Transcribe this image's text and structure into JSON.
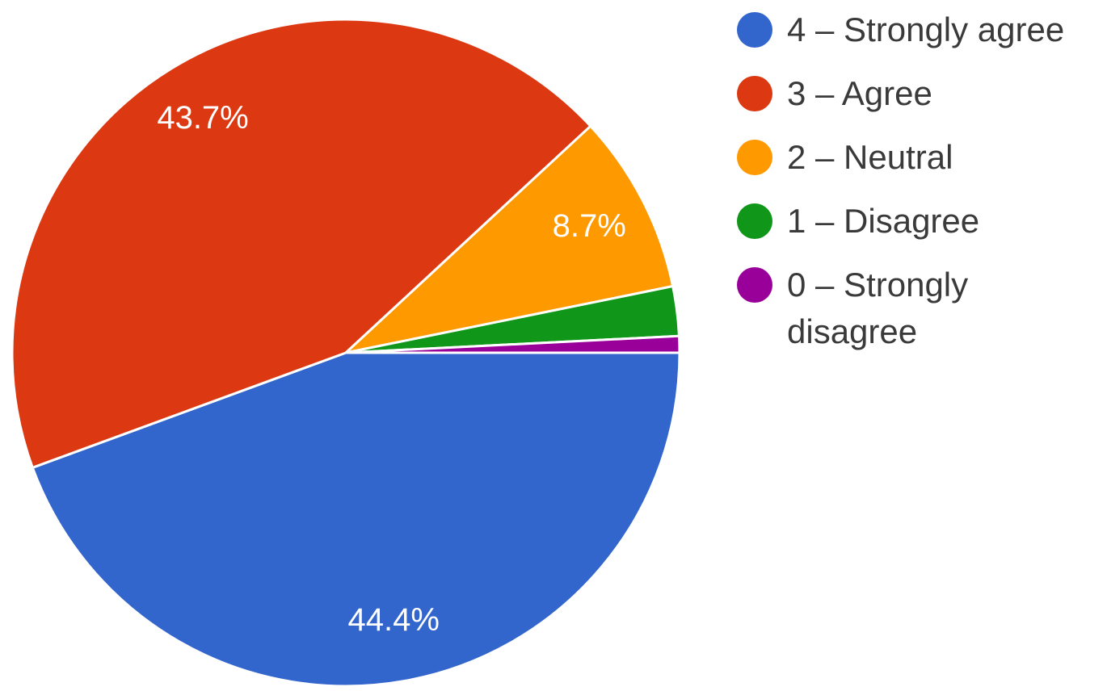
{
  "chart_data": {
    "type": "pie",
    "title": "",
    "legend_position": "right",
    "series": [
      {
        "label": "4 – Strongly agree",
        "value": 44.4,
        "value_label": "44.4%",
        "color": "#3366cc"
      },
      {
        "label": "3 – Agree",
        "value": 43.7,
        "value_label": "43.7%",
        "color": "#dc3912"
      },
      {
        "label": "2 – Neutral",
        "value": 8.7,
        "value_label": "8.7%",
        "color": "#ff9900"
      },
      {
        "label": "1 – Disagree",
        "value": 2.4,
        "value_label": "",
        "color": "#109618"
      },
      {
        "label": "0 – Strongly disagree",
        "value": 0.8,
        "value_label": "",
        "color": "#990099"
      }
    ]
  }
}
